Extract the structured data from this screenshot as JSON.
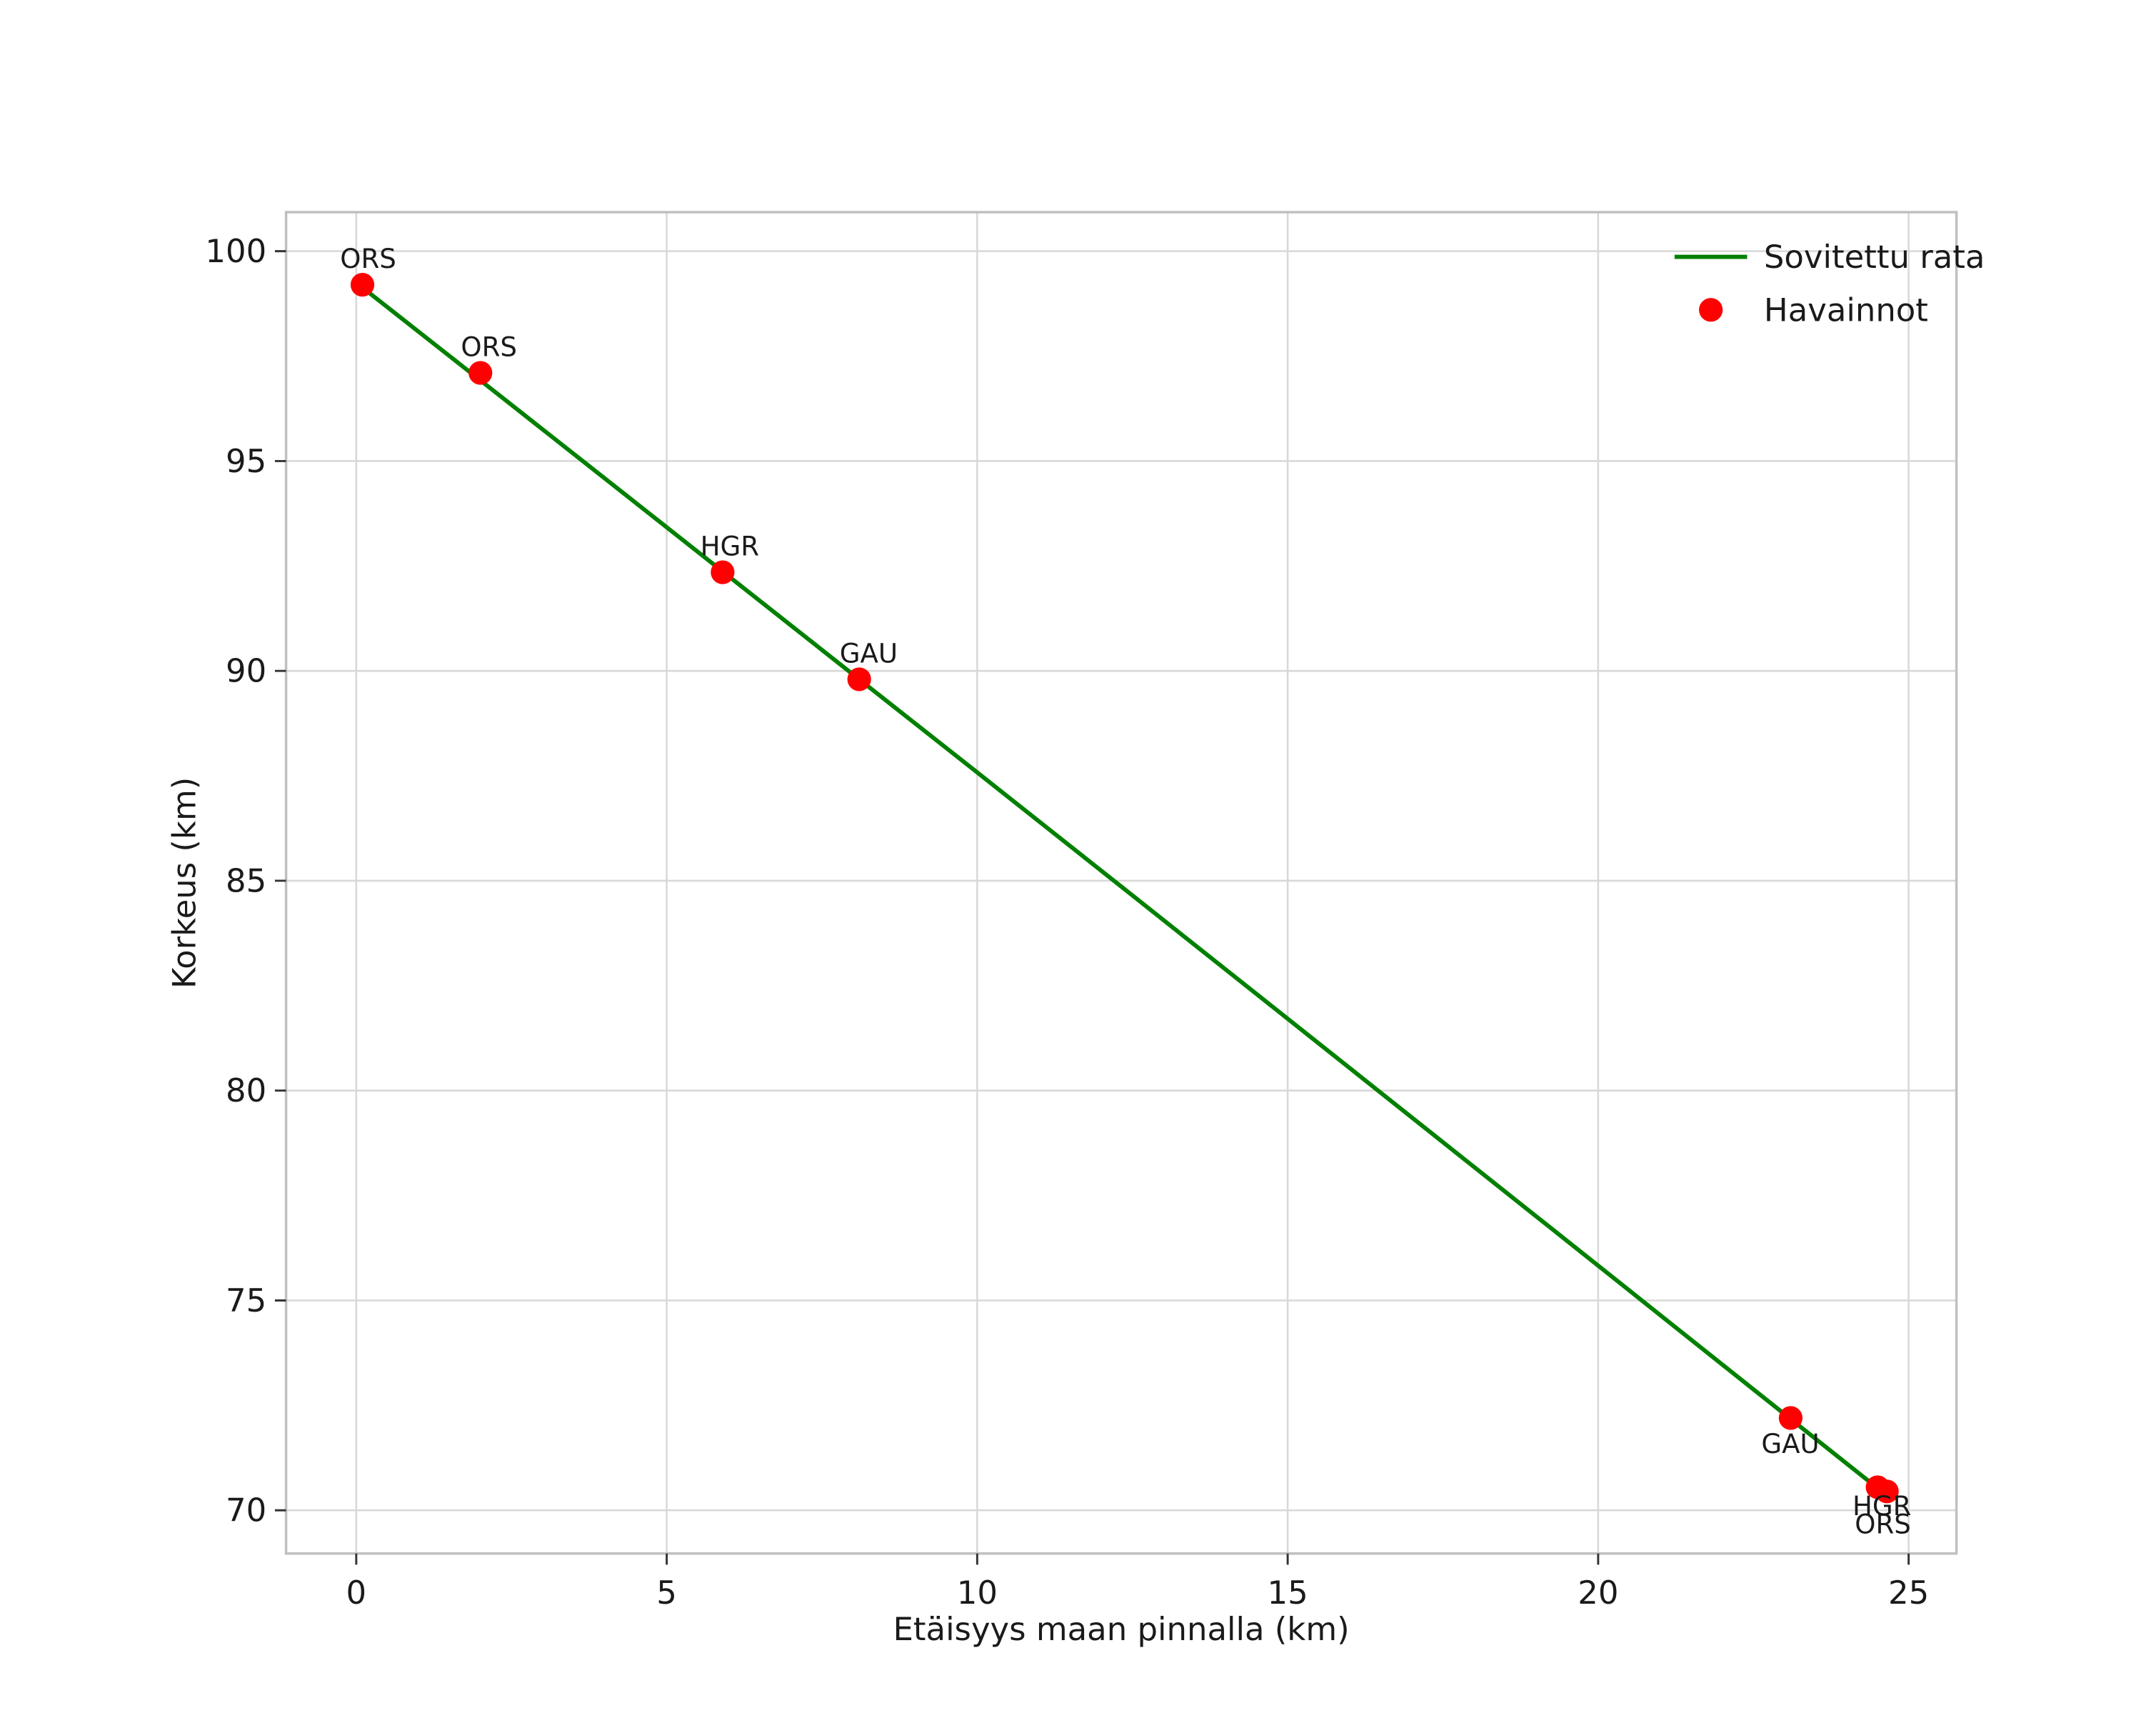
{
  "chart_data": {
    "type": "scatter",
    "title": "",
    "xlabel": "Etäisyys maan pinnalla (km)",
    "ylabel": "Korkeus (km)",
    "xlim": [
      -1.13,
      25.77
    ],
    "ylim": [
      68.97,
      100.93
    ],
    "x_ticks": [
      0,
      5,
      10,
      15,
      20,
      25
    ],
    "y_ticks": [
      70,
      75,
      80,
      85,
      90,
      95,
      100
    ],
    "grid": true,
    "colors": {
      "fit_line": "#008000",
      "marker": "#ff0000",
      "grid_line": "#d8d8d8",
      "spine": "#c0c0c0",
      "tick": "#333333",
      "text": "#1a1a1a"
    },
    "legend": {
      "position": "upper right",
      "entries": [
        {
          "label": "Sovitettu rata",
          "type": "line",
          "color": "#008000"
        },
        {
          "label": "Havainnot",
          "type": "marker",
          "color": "#ff0000"
        }
      ]
    },
    "fit_line": {
      "name": "Sovitettu rata",
      "x": [
        0,
        2.5,
        5,
        7.5,
        10,
        12.5,
        15,
        17.5,
        20,
        22.5,
        24.65
      ],
      "y": [
        99.25,
        96.34,
        93.42,
        90.5,
        87.58,
        84.65,
        81.71,
        78.77,
        75.83,
        72.88,
        70.35
      ]
    },
    "observations": {
      "name": "Havainnot",
      "points": [
        {
          "station": "ORS",
          "x": 0.1,
          "y": 99.2,
          "label_offset": [
            -16,
            -12
          ]
        },
        {
          "station": "ORS",
          "x": 2.0,
          "y": 97.1,
          "label_offset": [
            -14,
            -12
          ]
        },
        {
          "station": "HGR",
          "x": 5.9,
          "y": 92.35,
          "label_offset": [
            -16,
            -12
          ]
        },
        {
          "station": "GAU",
          "x": 8.1,
          "y": 89.8,
          "label_offset": [
            -14,
            -12
          ]
        },
        {
          "station": "GAU",
          "x": 23.1,
          "y": 72.2,
          "label_offset": [
            -21,
            25
          ]
        },
        {
          "station": "HGR",
          "x": 24.5,
          "y": 70.55,
          "label_offset": [
            -18,
            20
          ]
        },
        {
          "station": "ORS",
          "x": 24.65,
          "y": 70.45,
          "label_offset": [
            -23,
            30
          ]
        }
      ]
    }
  }
}
